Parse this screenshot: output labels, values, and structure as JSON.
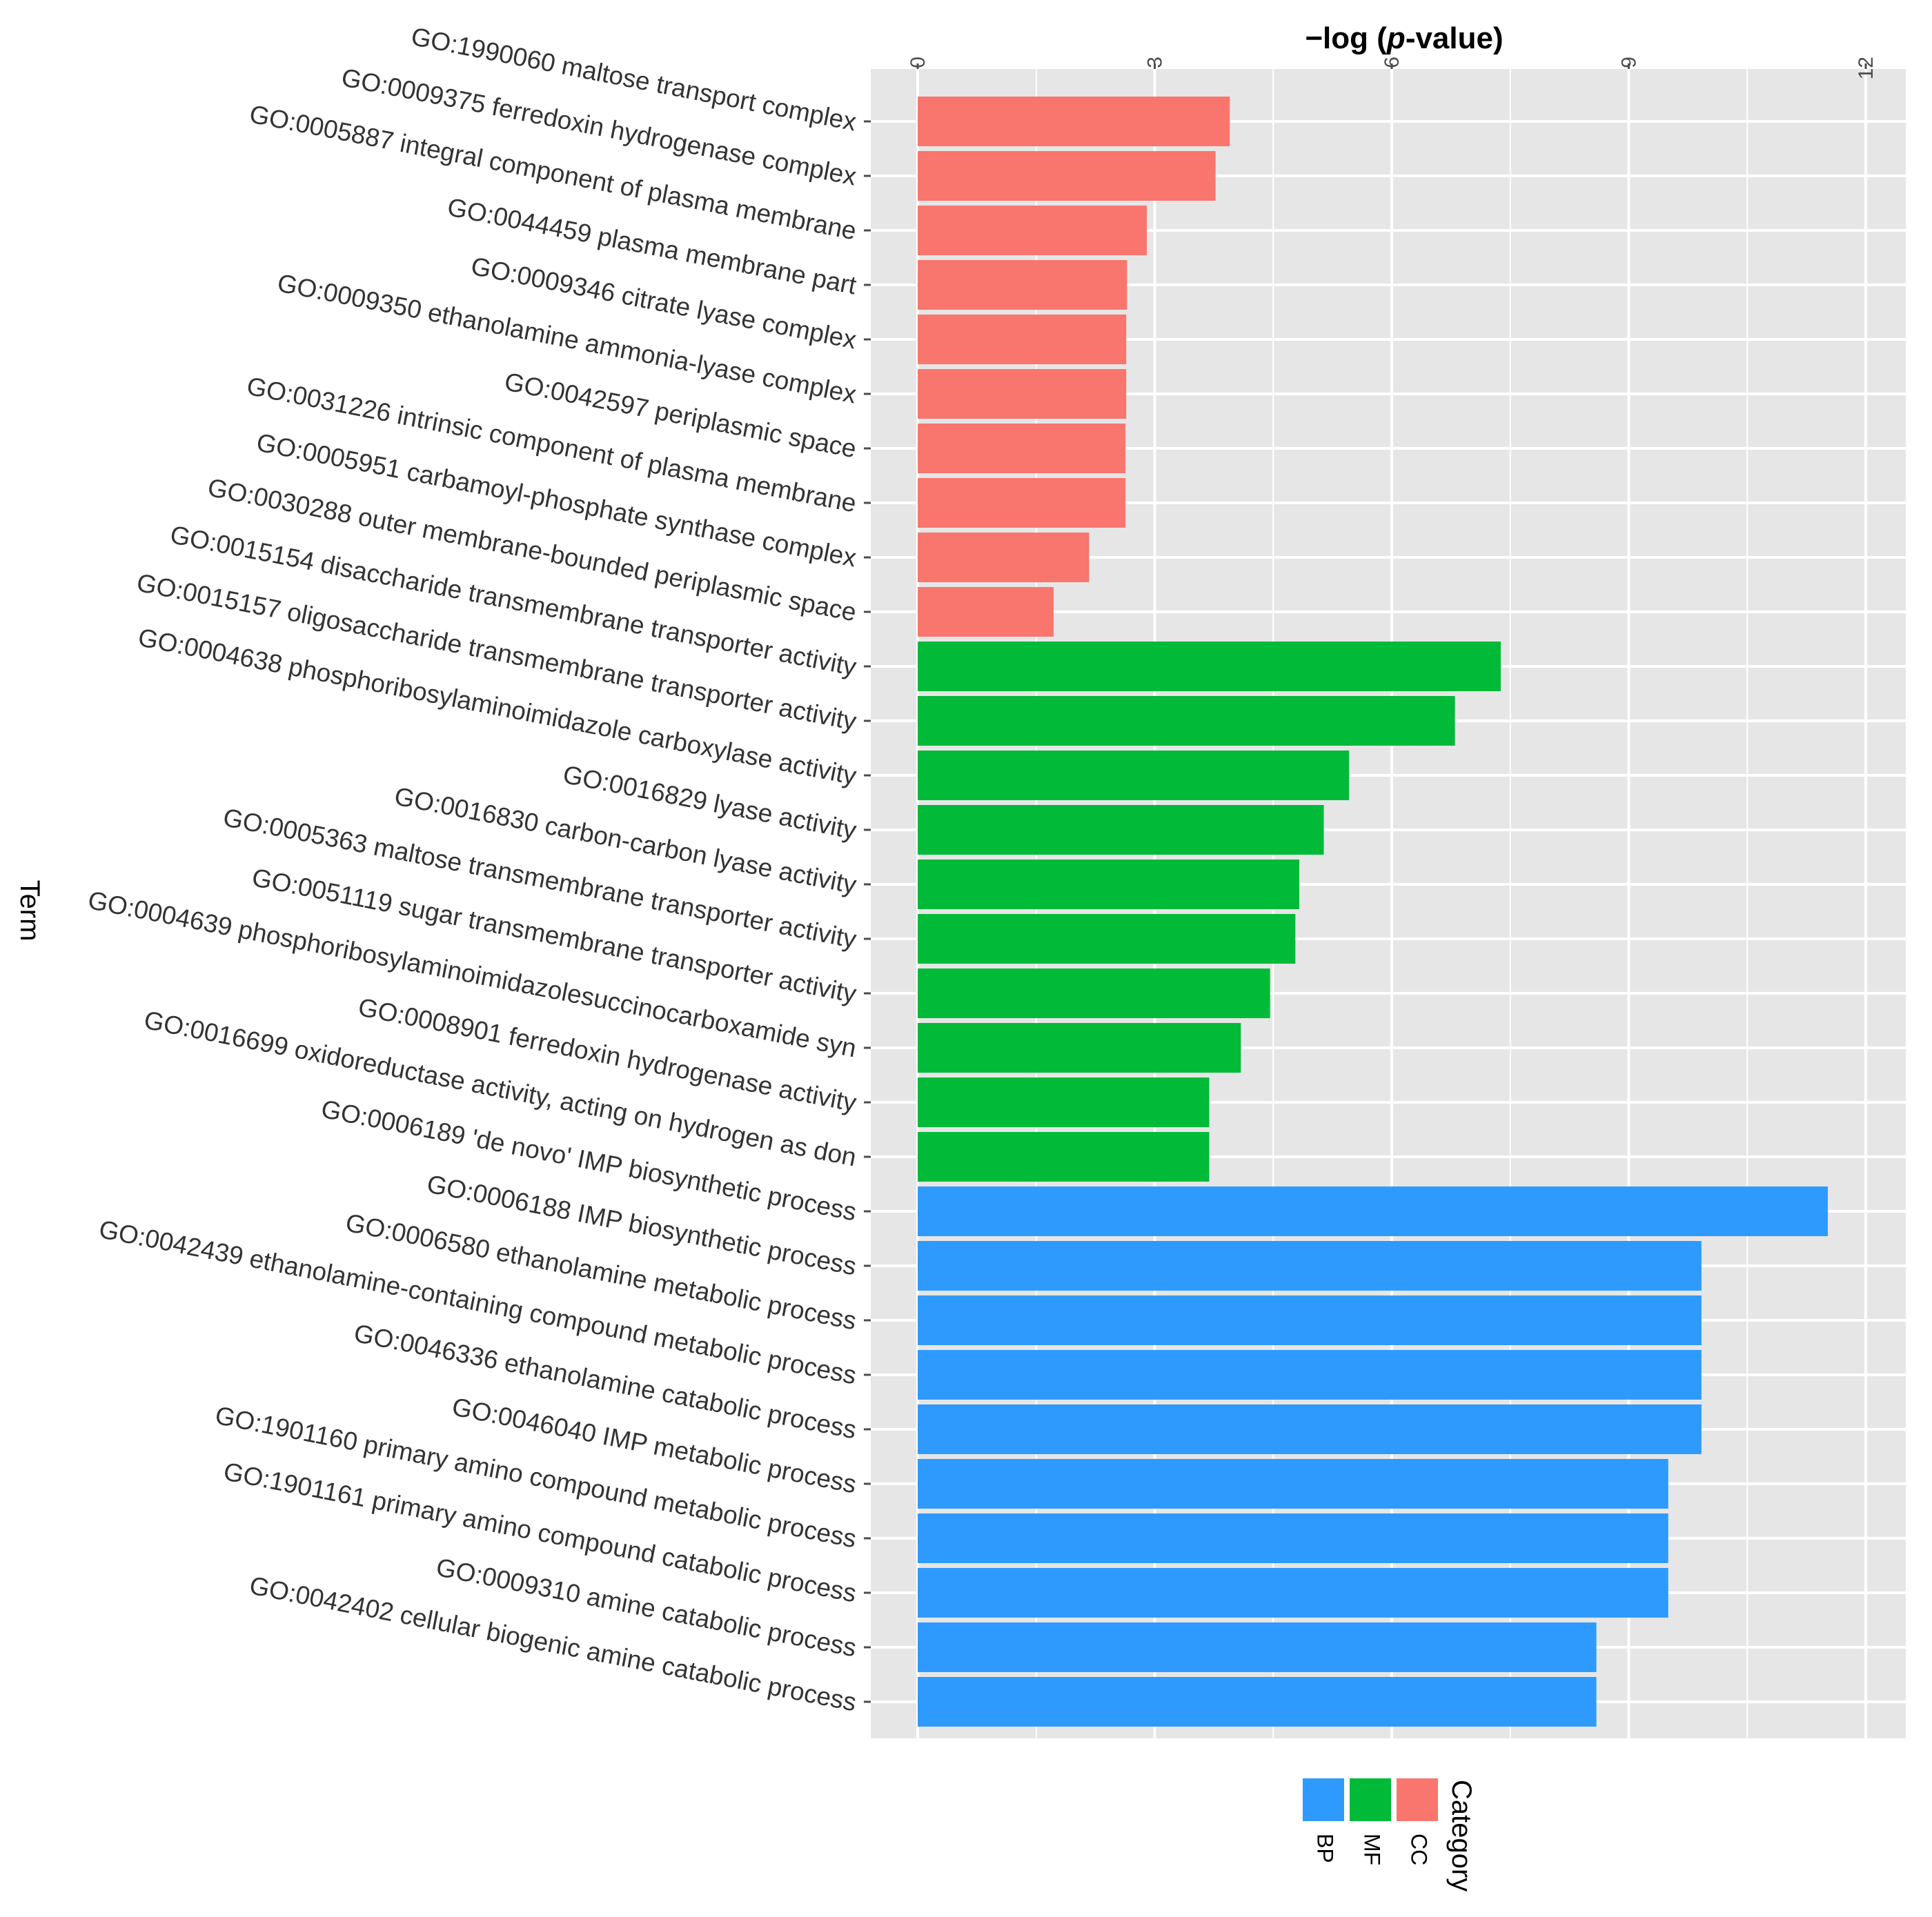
{
  "chart_data": {
    "type": "bar",
    "orientation": "horizontal",
    "title": "",
    "xlabel_prefix": "−log (",
    "xlabel_italic": "p",
    "xlabel_suffix": "-value)",
    "ylabel": "Term",
    "xlim": [
      0,
      12
    ],
    "xticks": [
      0,
      3,
      6,
      9,
      12
    ],
    "grid": true,
    "legend_title": "Category",
    "legend_position": "bottom-right",
    "categories_meta": [
      {
        "name": "BP",
        "color": "#2E9AFE"
      },
      {
        "name": "MF",
        "color": "#00BA38"
      },
      {
        "name": "CC",
        "color": "#F8766D"
      }
    ],
    "bars": [
      {
        "term": "GO:1990060 maltose transport complex",
        "value": 3.95,
        "category": "CC"
      },
      {
        "term": "GO:0009375 ferredoxin hydrogenase complex",
        "value": 3.77,
        "category": "CC"
      },
      {
        "term": "GO:0005887 integral component of plasma membrane",
        "value": 2.9,
        "category": "CC"
      },
      {
        "term": "GO:0044459 plasma membrane part",
        "value": 2.65,
        "category": "CC"
      },
      {
        "term": "GO:0009346 citrate lyase complex",
        "value": 2.64,
        "category": "CC"
      },
      {
        "term": "GO:0009350 ethanolamine ammonia-lyase complex",
        "value": 2.64,
        "category": "CC"
      },
      {
        "term": "GO:0042597 periplasmic space",
        "value": 2.63,
        "category": "CC"
      },
      {
        "term": "GO:0031226 intrinsic component of plasma membrane",
        "value": 2.63,
        "category": "CC"
      },
      {
        "term": "GO:0005951 carbamoyl-phosphate synthase complex",
        "value": 2.17,
        "category": "CC"
      },
      {
        "term": "GO:0030288 outer membrane-bounded periplasmic space",
        "value": 1.72,
        "category": "CC"
      },
      {
        "term": "GO:0015154 disaccharide transmembrane transporter activity",
        "value": 7.38,
        "category": "MF"
      },
      {
        "term": "GO:0015157 oligosaccharide transmembrane transporter activity",
        "value": 6.8,
        "category": "MF"
      },
      {
        "term": "GO:0004638 phosphoribosylaminoimidazole carboxylase activity",
        "value": 5.46,
        "category": "MF"
      },
      {
        "term": "GO:0016829 lyase activity",
        "value": 5.14,
        "category": "MF"
      },
      {
        "term": "GO:0016830 carbon-carbon lyase activity",
        "value": 4.83,
        "category": "MF"
      },
      {
        "term": "GO:0005363 maltose transmembrane transporter activity",
        "value": 4.78,
        "category": "MF"
      },
      {
        "term": "GO:0051119 sugar transmembrane transporter activity",
        "value": 4.46,
        "category": "MF"
      },
      {
        "term": "GO:0004639 phosphoribosylaminoimidazolesuccinocarboxamide syn",
        "value": 4.09,
        "category": "MF"
      },
      {
        "term": "GO:0008901 ferredoxin hydrogenase activity",
        "value": 3.69,
        "category": "MF"
      },
      {
        "term": "GO:0016699 oxidoreductase activity, acting on hydrogen as don",
        "value": 3.69,
        "category": "MF"
      },
      {
        "term": "GO:0006189 'de novo' IMP biosynthetic process",
        "value": 11.52,
        "category": "BP"
      },
      {
        "term": "GO:0006188 IMP biosynthetic process",
        "value": 9.92,
        "category": "BP"
      },
      {
        "term": "GO:0006580 ethanolamine metabolic process",
        "value": 9.92,
        "category": "BP"
      },
      {
        "term": "GO:0042439 ethanolamine-containing compound metabolic process",
        "value": 9.92,
        "category": "BP"
      },
      {
        "term": "GO:0046336 ethanolamine catabolic process",
        "value": 9.92,
        "category": "BP"
      },
      {
        "term": "GO:0046040 IMP metabolic process",
        "value": 9.5,
        "category": "BP"
      },
      {
        "term": "GO:1901160 primary amino compound metabolic process",
        "value": 9.5,
        "category": "BP"
      },
      {
        "term": "GO:1901161 primary amino compound catabolic process",
        "value": 9.5,
        "category": "BP"
      },
      {
        "term": "GO:0009310 amine catabolic process",
        "value": 8.59,
        "category": "BP"
      },
      {
        "term": "GO:0042402 cellular biogenic amine catabolic process",
        "value": 8.59,
        "category": "BP"
      }
    ]
  }
}
